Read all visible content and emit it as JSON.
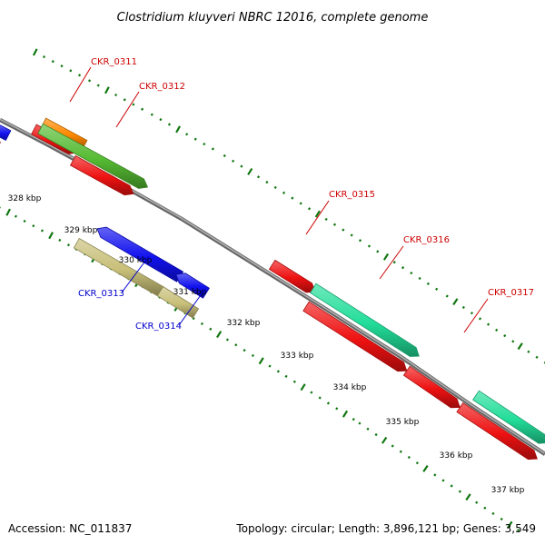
{
  "title": "Clostridium kluyveri NBRC 12016, complete genome",
  "footer": {
    "accession": "Accession: NC_011837",
    "summary": "Topology: circular; Length: 3,896,121 bp; Genes: 3,549"
  },
  "ruler": [
    "328 kbp",
    "329 kbp",
    "330 kbp",
    "331 kbp",
    "332 kbp",
    "333 kbp",
    "334 kbp",
    "335 kbp",
    "336 kbp",
    "337 kbp"
  ],
  "gene_labels": [
    {
      "name": "CKR_0311",
      "strand": "forward",
      "color": "#cc0000"
    },
    {
      "name": "CKR_0312",
      "strand": "forward",
      "color": "#cc0000"
    },
    {
      "name": "CKR_0313",
      "strand": "reverse",
      "color": "#0000cc"
    },
    {
      "name": "CKR_0314",
      "strand": "reverse",
      "color": "#0000cc"
    },
    {
      "name": "CKR_0315",
      "strand": "forward",
      "color": "#cc0000"
    },
    {
      "name": "CKR_0316",
      "strand": "forward",
      "color": "#cc0000"
    },
    {
      "name": "CKR_0317",
      "strand": "forward",
      "color": "#cc0000"
    }
  ],
  "colors": {
    "forward_cds": "#ee1111",
    "reverse_cds": "#1111ee",
    "rrna": "#22dd99",
    "gene_green": "#55bb33",
    "gene_orange": "#ff8800",
    "gene_khaki": "#c8bf78",
    "gene_pink": "#ff8899",
    "backbone": "#888888",
    "ticks": "#117711"
  }
}
